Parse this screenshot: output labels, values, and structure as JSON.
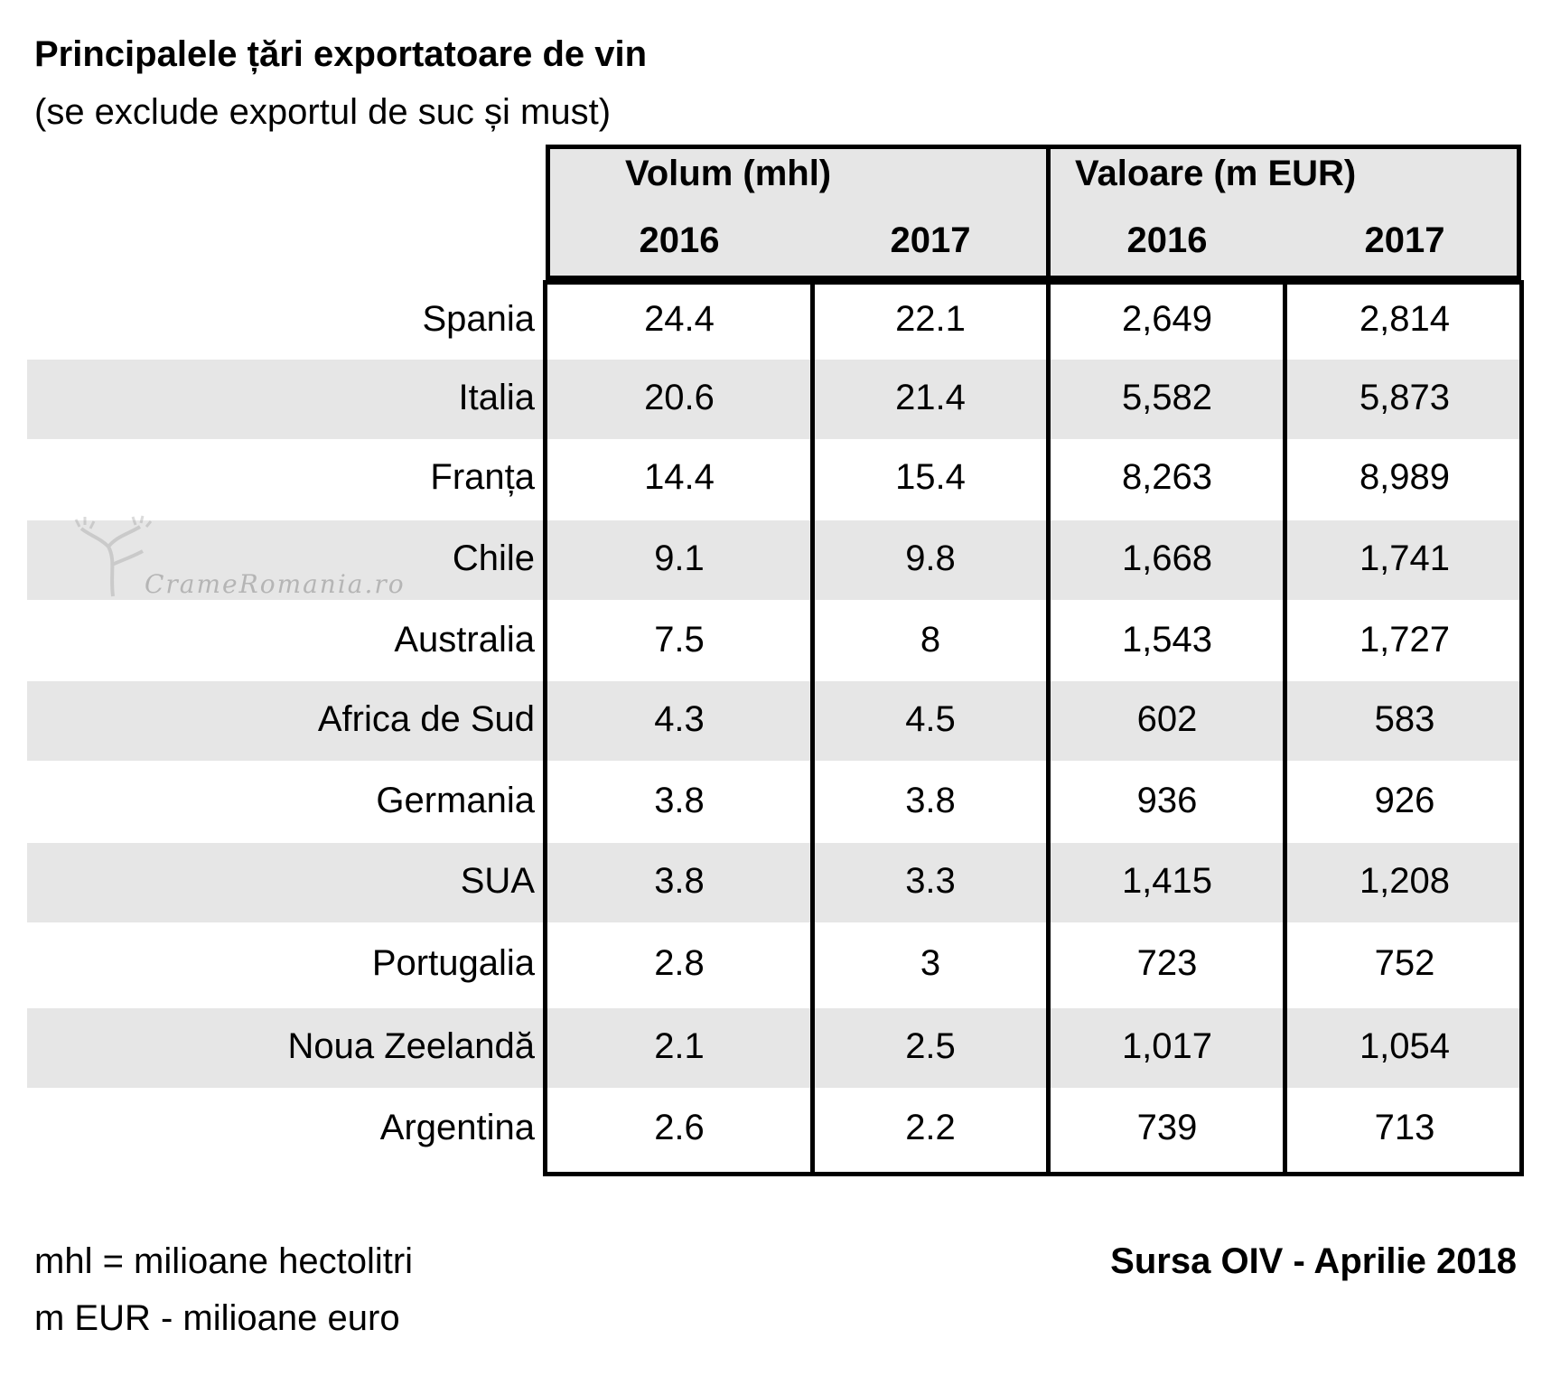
{
  "chart_data": {
    "type": "table",
    "title": "Principalele țări exportatoare de vin",
    "subtitle": "(se exclude exportul de suc și must)",
    "groups": [
      {
        "label": "Volum (mhl)",
        "years": [
          "2016",
          "2017"
        ]
      },
      {
        "label": "Valoare (m EUR)",
        "years": [
          "2016",
          "2017"
        ]
      }
    ],
    "rows": [
      {
        "country": "Spania",
        "vol_2016": "24.4",
        "vol_2017": "22.1",
        "val_2016": "2,649",
        "val_2017": "2,814"
      },
      {
        "country": "Italia",
        "vol_2016": "20.6",
        "vol_2017": "21.4",
        "val_2016": "5,582",
        "val_2017": "5,873"
      },
      {
        "country": "Franța",
        "vol_2016": "14.4",
        "vol_2017": "15.4",
        "val_2016": "8,263",
        "val_2017": "8,989"
      },
      {
        "country": "Chile",
        "vol_2016": "9.1",
        "vol_2017": "9.8",
        "val_2016": "1,668",
        "val_2017": "1,741"
      },
      {
        "country": "Australia",
        "vol_2016": "7.5",
        "vol_2017": "8",
        "val_2016": "1,543",
        "val_2017": "1,727"
      },
      {
        "country": "Africa de Sud",
        "vol_2016": "4.3",
        "vol_2017": "4.5",
        "val_2016": "602",
        "val_2017": "583"
      },
      {
        "country": "Germania",
        "vol_2016": "3.8",
        "vol_2017": "3.8",
        "val_2016": "936",
        "val_2017": "926"
      },
      {
        "country": "SUA",
        "vol_2016": "3.8",
        "vol_2017": "3.3",
        "val_2016": "1,415",
        "val_2017": "1,208"
      },
      {
        "country": "Portugalia",
        "vol_2016": "2.8",
        "vol_2017": "3",
        "val_2016": "723",
        "val_2017": "752"
      },
      {
        "country": "Noua Zeelandă",
        "vol_2016": "2.1",
        "vol_2017": "2.5",
        "val_2016": "1,017",
        "val_2017": "1,054"
      },
      {
        "country": "Argentina",
        "vol_2016": "2.6",
        "vol_2017": "2.2",
        "val_2016": "739",
        "val_2017": "713"
      }
    ],
    "band_color": "#e6e6e6"
  },
  "footnotes": [
    "mhl = milioane hectolitri",
    "m EUR - milioane euro"
  ],
  "source": "Sursa OIV - Aprilie 2018",
  "watermark": "CrameRomania.ro"
}
